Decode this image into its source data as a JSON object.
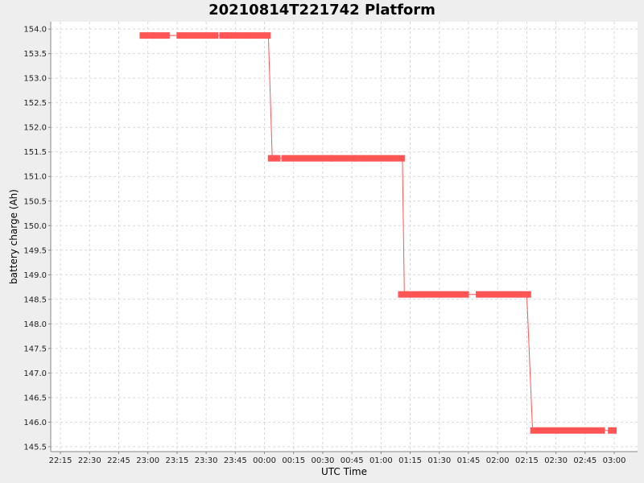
{
  "colors": {
    "background": "#eeeeee",
    "plot_background": "#ffffff",
    "grid": "#d9d9d9",
    "series": "#ff5555",
    "axis": "#888888"
  },
  "chart_data": {
    "type": "line",
    "title": "20210814T221742 Platform",
    "xlabel": "UTC Time",
    "ylabel": "battery charge (Ah)",
    "grid": true,
    "x_range_minutes": [
      -110,
      192
    ],
    "ylim": [
      145.4,
      154.15
    ],
    "xticks": [
      {
        "label": "22:15",
        "minutes": -105
      },
      {
        "label": "22:30",
        "minutes": -90
      },
      {
        "label": "22:45",
        "minutes": -75
      },
      {
        "label": "23:00",
        "minutes": -60
      },
      {
        "label": "23:15",
        "minutes": -45
      },
      {
        "label": "23:30",
        "minutes": -30
      },
      {
        "label": "23:45",
        "minutes": -15
      },
      {
        "label": "00:00",
        "minutes": 0
      },
      {
        "label": "00:15",
        "minutes": 15
      },
      {
        "label": "00:30",
        "minutes": 30
      },
      {
        "label": "00:45",
        "minutes": 45
      },
      {
        "label": "01:00",
        "minutes": 60
      },
      {
        "label": "01:15",
        "minutes": 75
      },
      {
        "label": "01:30",
        "minutes": 90
      },
      {
        "label": "01:45",
        "minutes": 105
      },
      {
        "label": "02:00",
        "minutes": 120
      },
      {
        "label": "02:15",
        "minutes": 135
      },
      {
        "label": "02:30",
        "minutes": 150
      },
      {
        "label": "02:45",
        "minutes": 165
      },
      {
        "label": "03:00",
        "minutes": 180
      }
    ],
    "yticks": [
      "145.5",
      "146.0",
      "146.5",
      "147.0",
      "147.5",
      "148.0",
      "148.5",
      "149.0",
      "149.5",
      "150.0",
      "150.5",
      "151.0",
      "151.5",
      "152.0",
      "152.5",
      "153.0",
      "153.5",
      "154.0"
    ],
    "series": [
      {
        "points": [
          {
            "x": "22:57",
            "y": 153.87
          },
          {
            "x": "00:02",
            "y": 153.87
          },
          {
            "x": "00:04",
            "y": 151.37
          },
          {
            "x": "01:11",
            "y": 151.37
          },
          {
            "x": "01:12",
            "y": 148.6
          },
          {
            "x": "02:15",
            "y": 148.6
          },
          {
            "x": "02:18",
            "y": 145.83
          },
          {
            "x": "03:00",
            "y": 145.83
          }
        ],
        "segments": [
          {
            "y": 153.87,
            "x": [
              "22:57",
              "22:58"
            ]
          },
          {
            "y": 153.87,
            "x": [
              "23:00",
              "23:02"
            ]
          },
          {
            "y": 153.87,
            "x": [
              "23:03",
              "23:10"
            ]
          },
          {
            "y": 153.87,
            "x": [
              "23:16",
              "23:35"
            ]
          },
          {
            "y": 153.87,
            "x": [
              "23:38",
              "23:40"
            ]
          },
          {
            "y": 153.87,
            "x": [
              "23:42",
              "23:50"
            ]
          },
          {
            "y": 153.87,
            "x": [
              "23:52",
              "00:02"
            ]
          },
          {
            "y": 151.37,
            "x": [
              "00:03",
              "00:07"
            ]
          },
          {
            "y": 151.37,
            "x": [
              "00:10",
              "00:34"
            ]
          },
          {
            "y": 151.37,
            "x": [
              "00:35",
              "00:46"
            ]
          },
          {
            "y": 151.37,
            "x": [
              "00:47",
              "00:50"
            ]
          },
          {
            "y": 151.37,
            "x": [
              "00:52",
              "01:11"
            ]
          },
          {
            "y": 148.6,
            "x": [
              "01:10",
              "01:44"
            ]
          },
          {
            "y": 148.6,
            "x": [
              "01:50",
              "02:11"
            ]
          },
          {
            "y": 148.6,
            "x": [
              "02:13",
              "02:16"
            ]
          },
          {
            "y": 145.83,
            "x": [
              "02:18",
              "02:54"
            ]
          },
          {
            "y": 145.83,
            "x": [
              "02:58",
              "03:00"
            ]
          }
        ]
      }
    ]
  }
}
